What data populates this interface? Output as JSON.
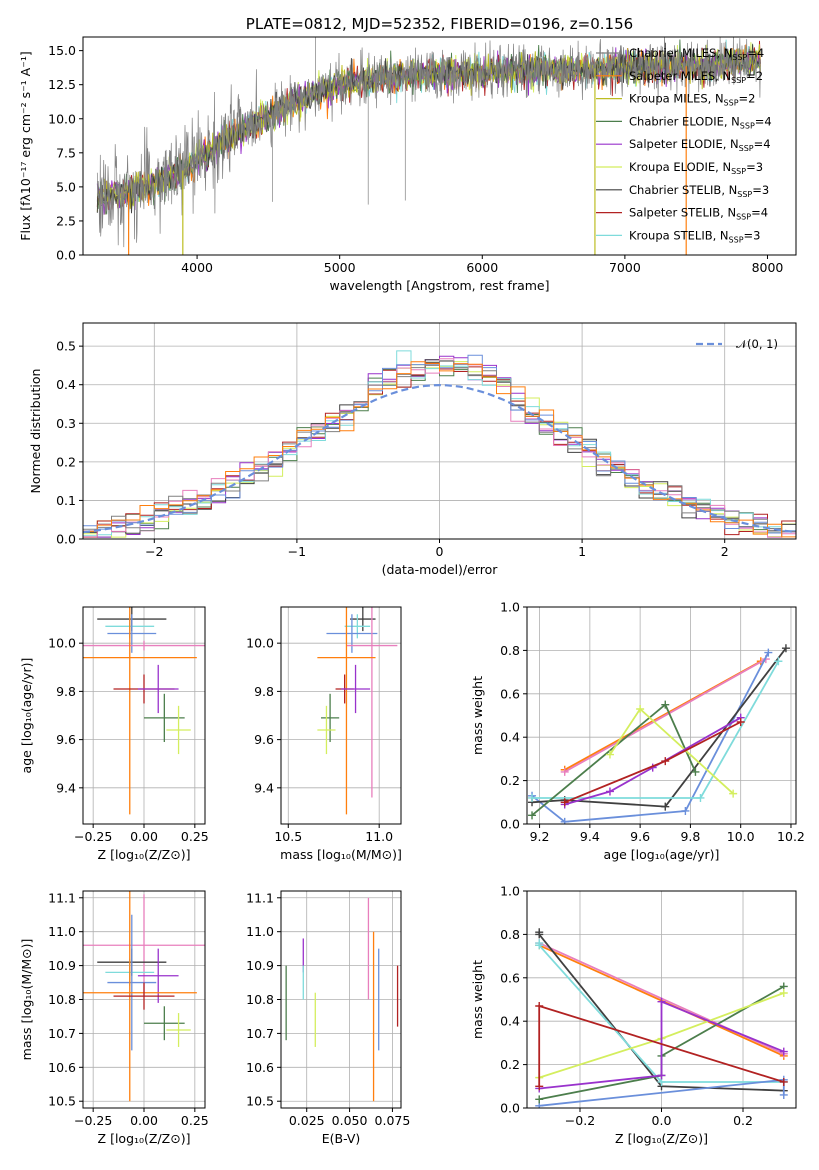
{
  "colors": {
    "Chabrier MILES": "#808080",
    "Salpeter MILES": "#ff7f0e",
    "Kroupa MILES": "#bcbd22",
    "Chabrier ELODIE": "#4c7e4c",
    "Salpeter ELODIE": "#9932cc",
    "Kroupa ELODIE": "#d4ee5e",
    "Chabrier STELIB": "#404040",
    "Salpeter STELIB": "#b22222",
    "Kroupa STELIB": "#7fdbdb",
    "blue": "#6a8fdb",
    "pink": "#e87fbd"
  },
  "legend": [
    {
      "label": "Chabrier MILES, N",
      "sub": "SSP",
      "tail": "=4",
      "color": "#808080"
    },
    {
      "label": "Salpeter MILES, N",
      "sub": "SSP",
      "tail": "=2",
      "color": "#ff7f0e"
    },
    {
      "label": "Kroupa MILES, N",
      "sub": "SSP",
      "tail": "=2",
      "color": "#bcbd22"
    },
    {
      "label": "Chabrier ELODIE, N",
      "sub": "SSP",
      "tail": "=4",
      "color": "#4c7e4c"
    },
    {
      "label": "Salpeter ELODIE, N",
      "sub": "SSP",
      "tail": "=4",
      "color": "#9932cc"
    },
    {
      "label": "Kroupa ELODIE, N",
      "sub": "SSP",
      "tail": "=3",
      "color": "#d4ee5e"
    },
    {
      "label": "Chabrier STELIB, N",
      "sub": "SSP",
      "tail": "=3",
      "color": "#404040"
    },
    {
      "label": "Salpeter STELIB, N",
      "sub": "SSP",
      "tail": "=4",
      "color": "#b22222"
    },
    {
      "label": "Kroupa STELIB, N",
      "sub": "SSP",
      "tail": "=3",
      "color": "#7fdbdb"
    }
  ],
  "chart_data": [
    {
      "type": "line",
      "title": "PLATE=0812, MJD=52352, FIBERID=0196, z=0.156",
      "xlabel": "wavelength [Angstrom, rest frame]",
      "ylabel": "Flux [fλ10⁻¹⁷ erg cm⁻² s⁻¹ A⁻¹]",
      "xlim": [
        3200,
        8200
      ],
      "ylim": [
        0,
        16
      ],
      "xticks": [
        4000,
        5000,
        6000,
        7000,
        8000
      ],
      "yticks": [
        0.0,
        2.5,
        5.0,
        7.5,
        10.0,
        12.5,
        15.0
      ],
      "ytick_labels": [
        "0.0",
        "2.5",
        "5.0",
        "7.5",
        "10.0",
        "12.5",
        "15.0"
      ],
      "spectrum_trend": {
        "x": [
          3300,
          3500,
          3700,
          3900,
          4100,
          4300,
          4500,
          4700,
          5000,
          5300,
          5600,
          6000,
          6400,
          6800,
          7200,
          7600,
          7900
        ],
        "y": [
          4.2,
          4.5,
          5.2,
          6.2,
          7.7,
          9.2,
          10.2,
          11.4,
          12.5,
          13.0,
          13.2,
          13.4,
          13.6,
          13.7,
          13.8,
          13.9,
          14.2
        ]
      }
    },
    {
      "type": "line",
      "xlabel": "(data-model)/error",
      "ylabel": "Normed distribution",
      "xlim": [
        -2.5,
        2.5
      ],
      "ylim": [
        0,
        0.56
      ],
      "xticks": [
        -2,
        -1,
        0,
        1,
        2
      ],
      "xtick_labels": [
        "−2",
        "−1",
        "0",
        "1",
        "2"
      ],
      "yticks": [
        0.0,
        0.1,
        0.2,
        0.3,
        0.4,
        0.5
      ],
      "ytick_labels": [
        "0.0",
        "0.1",
        "0.2",
        "0.3",
        "0.4",
        "0.5"
      ],
      "series": [
        {
          "name": "𝒩(0, 1)",
          "type": "normal-pdf",
          "mu": 0,
          "sigma": 1
        }
      ],
      "bin_width": 0.1,
      "histogram_range": [
        -2.5,
        2.5
      ]
    },
    {
      "type": "scatter",
      "xlabel": "Z [log₁₀(Z/Z⊙)]",
      "ylabel": "age  [log₁₀(age/yr)]",
      "xlim": [
        -0.3,
        0.3
      ],
      "ylim": [
        9.25,
        10.15
      ],
      "xticks": [
        -0.25,
        0.0,
        0.25
      ],
      "xtick_labels": [
        "−0.25",
        "0.00",
        "0.25"
      ],
      "yticks": [
        9.4,
        9.6,
        9.8,
        10.0
      ],
      "ytick_labels": [
        "9.4",
        "9.6",
        "9.8",
        "10.0"
      ],
      "points": [
        {
          "x": -0.06,
          "y": 10.1,
          "xerr": 0.17,
          "yerr": 0.05,
          "color": "#404040"
        },
        {
          "x": -0.07,
          "y": 10.07,
          "xerr": 0.12,
          "yerr": 0.05,
          "color": "#7fdbdb"
        },
        {
          "x": -0.06,
          "y": 10.04,
          "xerr": 0.12,
          "yerr": 0.08,
          "color": "#6a8fdb"
        },
        {
          "x": 0.0,
          "y": 9.99,
          "xerr": 0.3,
          "yerr": 0.02,
          "color": "#e87fbd"
        },
        {
          "x": -0.07,
          "y": 9.94,
          "xerr": 0.33,
          "yerr": 0.65,
          "color": "#ff7f0e"
        },
        {
          "x": 0.0,
          "y": 9.81,
          "xerr": 0.15,
          "yerr": 0.06,
          "color": "#b22222"
        },
        {
          "x": 0.07,
          "y": 9.81,
          "xerr": 0.1,
          "yerr": 0.1,
          "color": "#9932cc"
        },
        {
          "x": 0.1,
          "y": 9.69,
          "xerr": 0.1,
          "yerr": 0.1,
          "color": "#4c7e4c"
        },
        {
          "x": 0.17,
          "y": 9.64,
          "xerr": 0.06,
          "yerr": 0.1,
          "color": "#d4ee5e"
        }
      ]
    },
    {
      "type": "scatter",
      "xlabel": "mass [log₁₀(M/M⊙)]",
      "ylabel": "",
      "xlim": [
        10.46,
        11.12
      ],
      "ylim": [
        9.25,
        10.15
      ],
      "xticks": [
        10.5,
        11.0
      ],
      "xtick_labels": [
        "10.5",
        "11.0"
      ],
      "yticks": [
        9.4,
        9.6,
        9.8,
        10.0
      ],
      "ytick_labels": [
        "9.4",
        "9.6",
        "9.8",
        "10.0"
      ],
      "points": [
        {
          "x": 10.91,
          "y": 10.1,
          "xerr": 0.07,
          "yerr": 0.05,
          "color": "#404040"
        },
        {
          "x": 10.88,
          "y": 10.07,
          "xerr": 0.07,
          "yerr": 0.05,
          "color": "#7fdbdb"
        },
        {
          "x": 10.85,
          "y": 10.04,
          "xerr": 0.14,
          "yerr": 0.08,
          "color": "#6a8fdb"
        },
        {
          "x": 10.96,
          "y": 9.99,
          "xerr": 0.14,
          "yerr": 0.63,
          "color": "#e87fbd"
        },
        {
          "x": 10.82,
          "y": 9.94,
          "xerr": 0.16,
          "yerr": 0.65,
          "color": "#ff7f0e"
        },
        {
          "x": 10.81,
          "y": 9.81,
          "xerr": 0.05,
          "yerr": 0.06,
          "color": "#b22222"
        },
        {
          "x": 10.87,
          "y": 9.81,
          "xerr": 0.08,
          "yerr": 0.1,
          "color": "#9932cc"
        },
        {
          "x": 10.73,
          "y": 9.69,
          "xerr": 0.05,
          "yerr": 0.1,
          "color": "#4c7e4c"
        },
        {
          "x": 10.71,
          "y": 9.64,
          "xerr": 0.05,
          "yerr": 0.1,
          "color": "#d4ee5e"
        }
      ]
    },
    {
      "type": "line",
      "xlabel": "age  [log₁₀(age/yr)]",
      "ylabel": "mass weight",
      "xlim": [
        9.15,
        10.22
      ],
      "ylim": [
        0,
        1.0
      ],
      "xticks": [
        9.2,
        9.4,
        9.6,
        9.8,
        10.0,
        10.2
      ],
      "xtick_labels": [
        "9.2",
        "9.4",
        "9.6",
        "9.8",
        "10.0",
        "10.2"
      ],
      "yticks": [
        0.0,
        0.2,
        0.4,
        0.6,
        0.8,
        1.0
      ],
      "ytick_labels": [
        "0.0",
        "0.2",
        "0.4",
        "0.6",
        "0.8",
        "1.0"
      ],
      "series": [
        {
          "color": "#ff7f0e",
          "x": [
            9.3,
            10.08
          ],
          "y": [
            0.25,
            0.75
          ]
        },
        {
          "color": "#e87fbd",
          "x": [
            9.3,
            10.1
          ],
          "y": [
            0.24,
            0.76
          ]
        },
        {
          "color": "#6a8fdb",
          "x": [
            9.17,
            9.3,
            9.78,
            10.11
          ],
          "y": [
            0.13,
            0.01,
            0.06,
            0.79
          ]
        },
        {
          "color": "#404040",
          "x": [
            9.17,
            9.3,
            9.7,
            10.18
          ],
          "y": [
            0.1,
            0.11,
            0.08,
            0.81
          ]
        },
        {
          "color": "#7fdbdb",
          "x": [
            9.17,
            9.84,
            10.15
          ],
          "y": [
            0.12,
            0.12,
            0.75
          ]
        },
        {
          "color": "#4c7e4c",
          "x": [
            9.17,
            9.7,
            9.82
          ],
          "y": [
            0.04,
            0.55,
            0.24
          ]
        },
        {
          "color": "#d4ee5e",
          "x": [
            9.48,
            9.6,
            9.97
          ],
          "y": [
            0.32,
            0.53,
            0.14
          ]
        },
        {
          "color": "#9932cc",
          "x": [
            9.3,
            9.48,
            9.65,
            10.0
          ],
          "y": [
            0.09,
            0.15,
            0.26,
            0.49
          ]
        },
        {
          "color": "#b22222",
          "x": [
            9.3,
            9.7,
            10.0
          ],
          "y": [
            0.1,
            0.29,
            0.47
          ]
        }
      ]
    },
    {
      "type": "scatter",
      "xlabel": "Z [log₁₀(Z/Z⊙)]",
      "ylabel": "mass [log₁₀(M/M⊙)]",
      "xlim": [
        -0.3,
        0.3
      ],
      "ylim": [
        10.48,
        11.12
      ],
      "xticks": [
        -0.25,
        0.0,
        0.25
      ],
      "xtick_labels": [
        "−0.25",
        "0.00",
        "0.25"
      ],
      "yticks": [
        10.5,
        10.6,
        10.7,
        10.8,
        10.9,
        11.0,
        11.1
      ],
      "ytick_labels": [
        "10.5",
        "10.6",
        "10.7",
        "10.8",
        "10.9",
        "11.0",
        "11.1"
      ],
      "points": [
        {
          "x": 0.0,
          "y": 10.96,
          "xerr": 0.3,
          "yerr": 0.15,
          "color": "#e87fbd"
        },
        {
          "x": -0.06,
          "y": 10.91,
          "xerr": 0.17,
          "yerr": 0.04,
          "color": "#404040"
        },
        {
          "x": -0.07,
          "y": 10.88,
          "xerr": 0.12,
          "yerr": 0.04,
          "color": "#7fdbdb"
        },
        {
          "x": 0.07,
          "y": 10.87,
          "xerr": 0.1,
          "yerr": 0.08,
          "color": "#9932cc"
        },
        {
          "x": -0.06,
          "y": 10.85,
          "xerr": 0.12,
          "yerr": 0.2,
          "color": "#6a8fdb"
        },
        {
          "x": -0.07,
          "y": 10.82,
          "xerr": 0.33,
          "yerr": 0.32,
          "color": "#ff7f0e"
        },
        {
          "x": 0.0,
          "y": 10.81,
          "xerr": 0.15,
          "yerr": 0.04,
          "color": "#b22222"
        },
        {
          "x": 0.1,
          "y": 10.73,
          "xerr": 0.1,
          "yerr": 0.05,
          "color": "#4c7e4c"
        },
        {
          "x": 0.17,
          "y": 10.71,
          "xerr": 0.06,
          "yerr": 0.05,
          "color": "#d4ee5e"
        }
      ]
    },
    {
      "type": "scatter",
      "xlabel": "E(B-V)",
      "ylabel": "",
      "xlim": [
        0.01,
        0.08
      ],
      "ylim": [
        10.48,
        11.12
      ],
      "xticks": [
        0.025,
        0.05,
        0.075
      ],
      "xtick_labels": [
        "0.025",
        "0.050",
        "0.075"
      ],
      "yticks": [
        10.5,
        10.6,
        10.7,
        10.8,
        10.9,
        11.0,
        11.1
      ],
      "ytick_labels": [
        "10.5",
        "10.6",
        "10.7",
        "10.8",
        "10.9",
        "11.0",
        "11.1"
      ],
      "points": [
        {
          "x": 0.013,
          "y": 10.79,
          "xerr": 0,
          "yerr": 0.11,
          "color": "#4c7e4c"
        },
        {
          "x": 0.023,
          "y": 10.93,
          "xerr": 0,
          "yerr": 0.05,
          "color": "#9932cc"
        },
        {
          "x": 0.023,
          "y": 10.85,
          "xerr": 0,
          "yerr": 0.05,
          "color": "#7fdbdb"
        },
        {
          "x": 0.03,
          "y": 10.74,
          "xerr": 0,
          "yerr": 0.08,
          "color": "#d4ee5e"
        },
        {
          "x": 0.061,
          "y": 10.95,
          "xerr": 0,
          "yerr": 0.15,
          "color": "#e87fbd"
        },
        {
          "x": 0.064,
          "y": 10.75,
          "xerr": 0,
          "yerr": 0.25,
          "color": "#ff7f0e"
        },
        {
          "x": 0.067,
          "y": 10.8,
          "xerr": 0,
          "yerr": 0.15,
          "color": "#6a8fdb"
        },
        {
          "x": 0.078,
          "y": 10.81,
          "xerr": 0,
          "yerr": 0.09,
          "color": "#b22222"
        }
      ]
    },
    {
      "type": "line",
      "xlabel": "Z [log₁₀(Z/Z⊙)]",
      "ylabel": "mass weight",
      "xlim": [
        -0.33,
        0.33
      ],
      "ylim": [
        0,
        1.0
      ],
      "xticks": [
        -0.2,
        0.0,
        0.2
      ],
      "xtick_labels": [
        "−0.2",
        "0.0",
        "0.2"
      ],
      "yticks": [
        0.0,
        0.2,
        0.4,
        0.6,
        0.8,
        1.0
      ],
      "ytick_labels": [
        "0.0",
        "0.2",
        "0.4",
        "0.6",
        "0.8",
        "1.0"
      ],
      "series": [
        {
          "color": "#ff7f0e",
          "x": [
            -0.3,
            0.3
          ],
          "y": [
            0.75,
            0.24
          ]
        },
        {
          "color": "#e87fbd",
          "x": [
            -0.3,
            0.3
          ],
          "y": [
            0.76,
            0.25
          ]
        },
        {
          "color": "#404040",
          "x": [
            -0.3,
            -0.3,
            0.0,
            0.3
          ],
          "y": [
            0.81,
            0.8,
            0.1,
            0.08
          ]
        },
        {
          "color": "#7fdbdb",
          "x": [
            -0.3,
            -0.3,
            0.0,
            0.3
          ],
          "y": [
            0.76,
            0.75,
            0.12,
            0.12
          ]
        },
        {
          "color": "#6a8fdb",
          "x": [
            -0.3,
            0.3,
            0.3
          ],
          "y": [
            0.01,
            0.13,
            0.06
          ]
        },
        {
          "color": "#4c7e4c",
          "x": [
            -0.3,
            0.0,
            0.0,
            0.3
          ],
          "y": [
            0.04,
            0.15,
            0.24,
            0.56
          ]
        },
        {
          "color": "#d4ee5e",
          "x": [
            -0.3,
            0.0,
            0.3
          ],
          "y": [
            0.14,
            0.32,
            0.53
          ]
        },
        {
          "color": "#9932cc",
          "x": [
            -0.3,
            0.0,
            0.0,
            0.3
          ],
          "y": [
            0.09,
            0.15,
            0.49,
            0.26
          ]
        },
        {
          "color": "#b22222",
          "x": [
            -0.3,
            -0.3,
            0.3
          ],
          "y": [
            0.1,
            0.47,
            0.12
          ]
        }
      ]
    }
  ]
}
